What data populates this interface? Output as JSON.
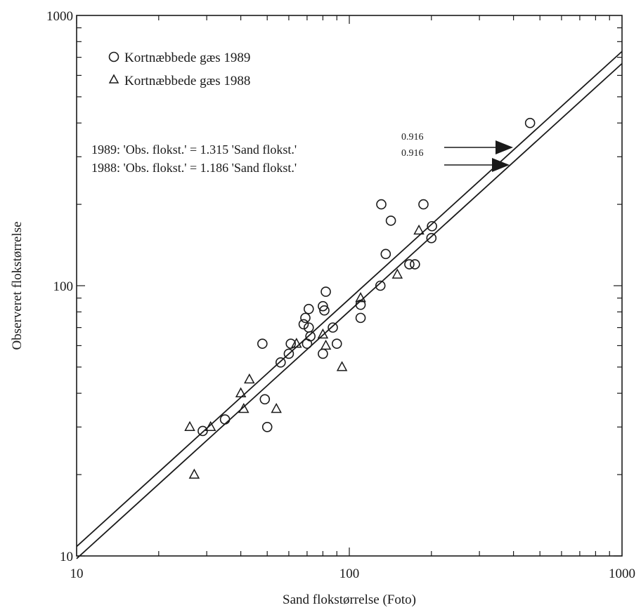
{
  "chart_data": {
    "type": "scatter",
    "scale": "log-log",
    "xlabel": "Sand flokstørrelse (Foto)",
    "ylabel": "Observeret flokstørrelse",
    "xlim": [
      10,
      1000
    ],
    "ylim": [
      10,
      1000
    ],
    "x_ticks": [
      "10",
      "100",
      "1000"
    ],
    "y_ticks": [
      "10",
      "100",
      "1000"
    ],
    "grid": false,
    "legend_position": "top-left",
    "series": [
      {
        "name": "Kortnæbbede gæs 1989",
        "marker": "circle",
        "points": [
          [
            29,
            29
          ],
          [
            35,
            32
          ],
          [
            48,
            61
          ],
          [
            49,
            38
          ],
          [
            50,
            30
          ],
          [
            56,
            52
          ],
          [
            60,
            56
          ],
          [
            61,
            61
          ],
          [
            68,
            72
          ],
          [
            69,
            76
          ],
          [
            70,
            61
          ],
          [
            71,
            70
          ],
          [
            71,
            82
          ],
          [
            72,
            65
          ],
          [
            80,
            56
          ],
          [
            80,
            84
          ],
          [
            81,
            81
          ],
          [
            82,
            95
          ],
          [
            87,
            70
          ],
          [
            90,
            61
          ],
          [
            110,
            85
          ],
          [
            110,
            76
          ],
          [
            130,
            100
          ],
          [
            131,
            200
          ],
          [
            136,
            131
          ],
          [
            142,
            174
          ],
          [
            166,
            120
          ],
          [
            174,
            120
          ],
          [
            187,
            200
          ],
          [
            200,
            150
          ],
          [
            201,
            166
          ],
          [
            460,
            400
          ]
        ]
      },
      {
        "name": "Kortnæbbede gæs 1988",
        "marker": "triangle",
        "points": [
          [
            26,
            30
          ],
          [
            27,
            20
          ],
          [
            31,
            30
          ],
          [
            40,
            40
          ],
          [
            41,
            35
          ],
          [
            43,
            45
          ],
          [
            54,
            35
          ],
          [
            64,
            61
          ],
          [
            80,
            66
          ],
          [
            82,
            60
          ],
          [
            94,
            50
          ],
          [
            110,
            90
          ],
          [
            150,
            110
          ],
          [
            180,
            160
          ]
        ]
      }
    ],
    "fits": [
      {
        "label": "1989: 'Obs. flokst.' = 1.315 'Sand flokst.'",
        "exponent_label": "0.916",
        "coefficient": 1.315,
        "exponent": 0.916
      },
      {
        "label": "1988: 'Obs. flokst.' = 1.186 'Sand flokst.'",
        "exponent_label": "0.916",
        "coefficient": 1.186,
        "exponent": 0.916
      }
    ]
  }
}
